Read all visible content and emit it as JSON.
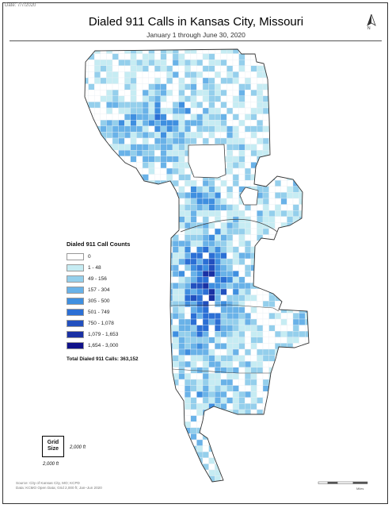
{
  "header": {
    "date": "Date: 7/7/2020",
    "title": "Dialed 911 Calls in Kansas City, Missouri",
    "subtitle": "January 1 through June 30, 2020"
  },
  "north_arrow": {
    "label": "N",
    "icon": "north-arrow-icon"
  },
  "legend": {
    "title": "Dialed 911 Call Counts",
    "classes": [
      {
        "label": "0",
        "color": "#ffffff"
      },
      {
        "label": "1 - 48",
        "color": "#c6ecf3"
      },
      {
        "label": "49 - 156",
        "color": "#94cfec"
      },
      {
        "label": "157 - 304",
        "color": "#69b2e8"
      },
      {
        "label": "305 - 500",
        "color": "#3f8fe0"
      },
      {
        "label": "501 - 749",
        "color": "#2b6fd5"
      },
      {
        "label": "750 - 1,078",
        "color": "#2250bf"
      },
      {
        "label": "1,079 - 1,653",
        "color": "#1a31a4"
      },
      {
        "label": "1,654 - 3,000",
        "color": "#10128a"
      }
    ],
    "total": "Total Dialed 911 Calls: 363,152"
  },
  "grid_size": {
    "box_label_1": "Grid",
    "box_label_2": "Size",
    "side_label": "2,000 ft",
    "below_label": "2,000 ft"
  },
  "source": {
    "line1": "Source: City of Kansas City, MO; KCPD",
    "line2": "Data: KCMO Open Data; Grid 2,000 ft; Jan–Jun 2020"
  },
  "scale_bar": {
    "unit": "Miles"
  }
}
